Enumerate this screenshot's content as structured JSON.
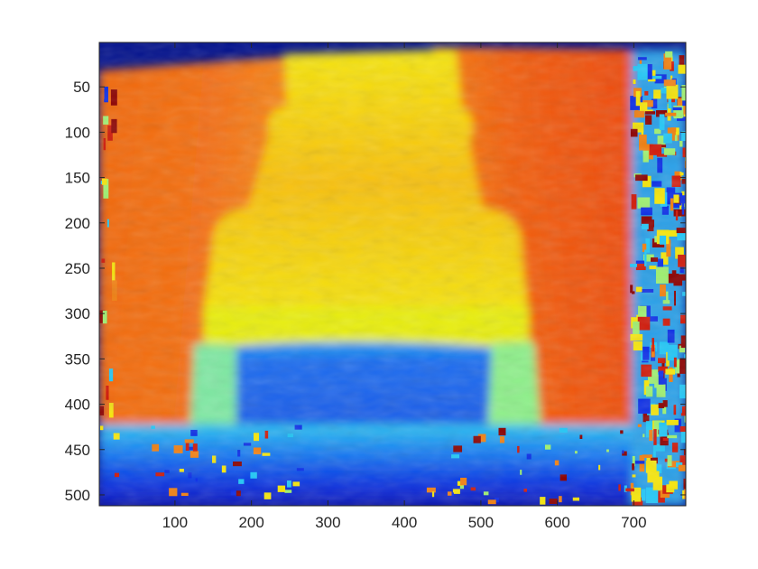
{
  "chart_data": {
    "type": "heatmap",
    "title": "",
    "xlabel": "",
    "ylabel": "",
    "colormap": "jet",
    "xlim": [
      1,
      768
    ],
    "ylim": [
      1,
      512
    ],
    "y_reversed": true,
    "grid": false,
    "x_ticks": [
      100,
      200,
      300,
      400,
      500,
      600,
      700
    ],
    "y_ticks": [
      50,
      100,
      150,
      200,
      250,
      300,
      350,
      400,
      450,
      500
    ],
    "x_tick_labels": [
      "100",
      "200",
      "300",
      "400",
      "500",
      "600",
      "700"
    ],
    "y_tick_labels": [
      "50",
      "100",
      "150",
      "200",
      "250",
      "300",
      "350",
      "400",
      "450",
      "500"
    ],
    "regions": [
      {
        "name": "background",
        "value": 0.0
      },
      {
        "name": "left-curtain",
        "x": [
          1,
          230
        ],
        "y": [
          30,
          470
        ],
        "value": 0.82
      },
      {
        "name": "right-curtain",
        "x": [
          480,
          700
        ],
        "y": [
          20,
          470
        ],
        "value": 0.82
      },
      {
        "name": "ornate-chair-back",
        "x": [
          150,
          560
        ],
        "y": [
          15,
          340
        ],
        "value": 0.68
      },
      {
        "name": "chair-cushion",
        "x": [
          150,
          560
        ],
        "y": [
          300,
          345
        ],
        "value": 0.58
      },
      {
        "name": "chair-base",
        "x": [
          200,
          530
        ],
        "y": [
          345,
          470
        ],
        "value": 0.25
      },
      {
        "name": "floor",
        "x": [
          1,
          768
        ],
        "y": [
          440,
          512
        ],
        "value": 0.18
      },
      {
        "name": "noisy-right-edge",
        "x": [
          700,
          768
        ],
        "y": [
          1,
          512
        ],
        "value": "mixed"
      }
    ]
  }
}
